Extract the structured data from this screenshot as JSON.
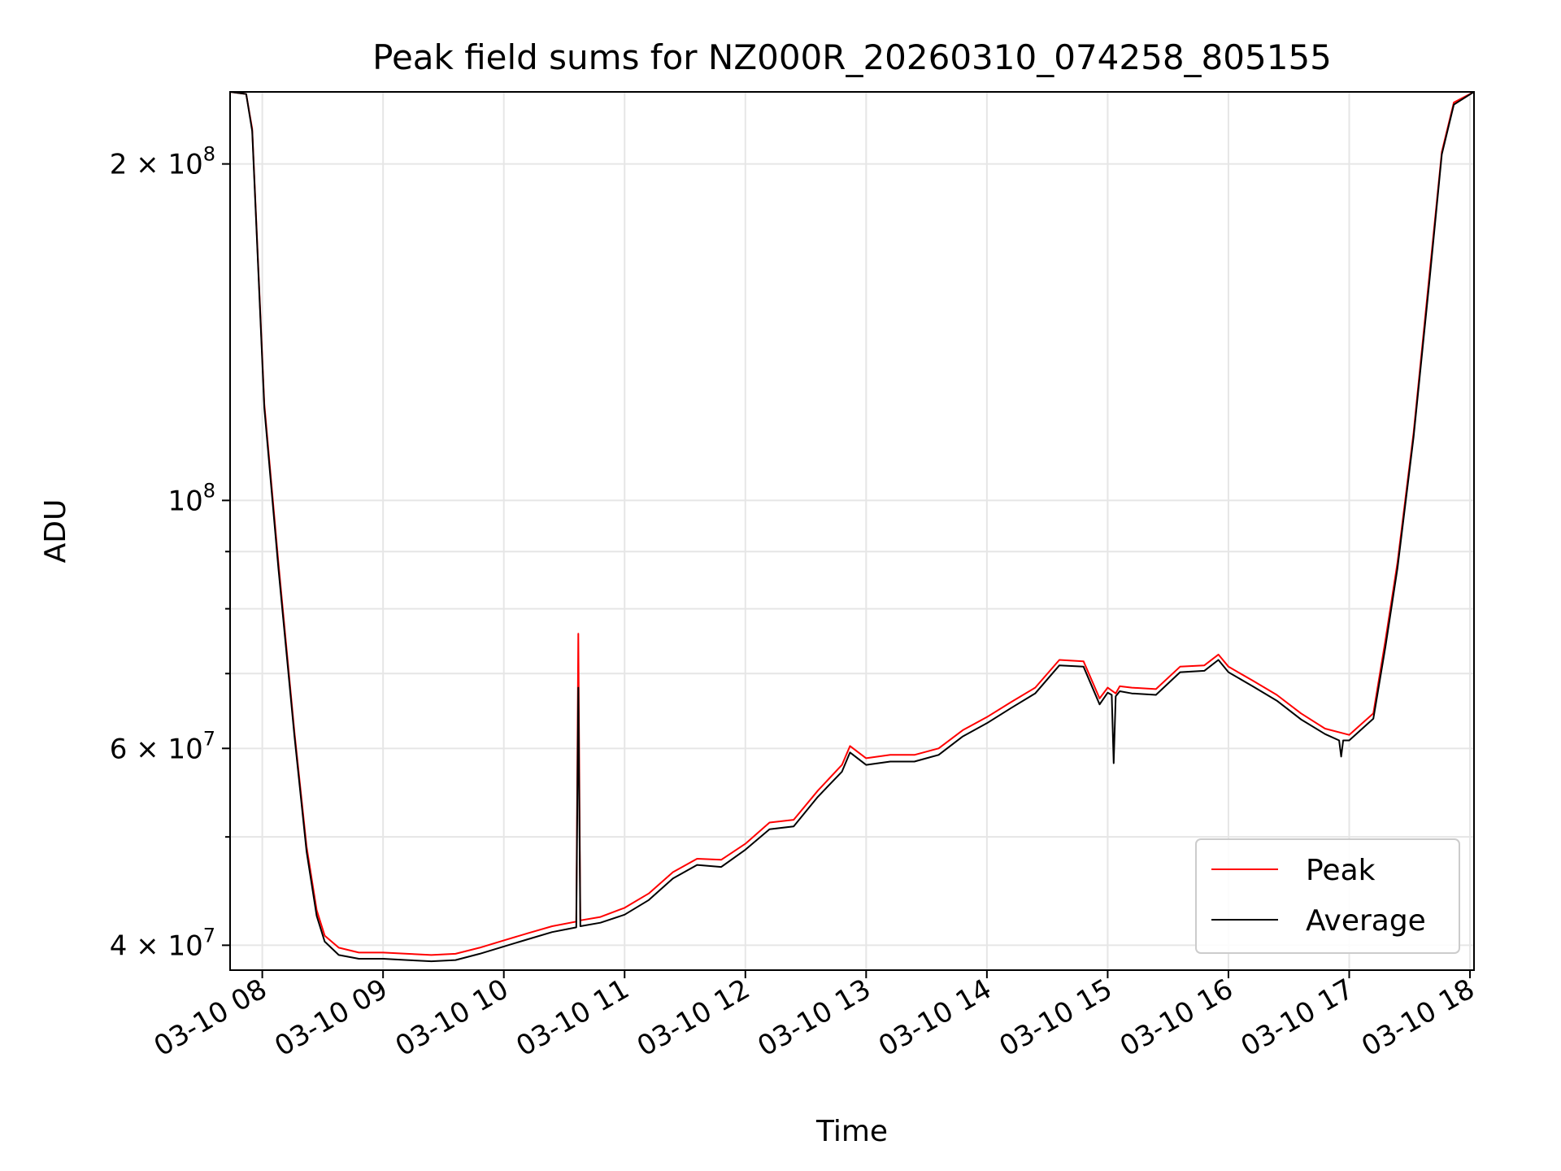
{
  "chart_data": {
    "type": "line",
    "title": "Peak field sums for NZ000R_20260310_074258_805155",
    "xlabel": "Time",
    "ylabel": "ADU",
    "x_type": "time",
    "y_scale": "log",
    "xlim": [
      "2026-03-10 07:44",
      "2026-03-10 18:02"
    ],
    "ylim": [
      38000000,
      232000000
    ],
    "grid": true,
    "legend_position": "lower-right",
    "x_ticks": [
      {
        "value": "2026-03-10 08:00",
        "label": "03-10 08"
      },
      {
        "value": "2026-03-10 09:00",
        "label": "03-10 09"
      },
      {
        "value": "2026-03-10 10:00",
        "label": "03-10 10"
      },
      {
        "value": "2026-03-10 11:00",
        "label": "03-10 11"
      },
      {
        "value": "2026-03-10 12:00",
        "label": "03-10 12"
      },
      {
        "value": "2026-03-10 13:00",
        "label": "03-10 13"
      },
      {
        "value": "2026-03-10 14:00",
        "label": "03-10 14"
      },
      {
        "value": "2026-03-10 15:00",
        "label": "03-10 15"
      },
      {
        "value": "2026-03-10 16:00",
        "label": "03-10 16"
      },
      {
        "value": "2026-03-10 17:00",
        "label": "03-10 17"
      },
      {
        "value": "2026-03-10 18:00",
        "label": "03-10 18"
      }
    ],
    "y_major_ticks": [
      {
        "value": 40000000,
        "label": "4 × 10",
        "exp": "7"
      },
      {
        "value": 60000000,
        "label": "6 × 10",
        "exp": "7"
      },
      {
        "value": 100000000,
        "label": "10",
        "exp": "8"
      },
      {
        "value": 200000000,
        "label": "2 × 10",
        "exp": "8"
      }
    ],
    "y_minor_ticks": [
      50000000,
      70000000,
      80000000,
      90000000
    ],
    "series": [
      {
        "name": "Peak",
        "color": "#ff0000",
        "points": [
          [
            "2026-03-10 07:44",
            232000000
          ],
          [
            "2026-03-10 07:52",
            231000000
          ],
          [
            "2026-03-10 07:55",
            215000000
          ],
          [
            "2026-03-10 08:01",
            122000000
          ],
          [
            "2026-03-10 08:08",
            88000000
          ],
          [
            "2026-03-10 08:16",
            62000000
          ],
          [
            "2026-03-10 08:22",
            49000000
          ],
          [
            "2026-03-10 08:27",
            43000000
          ],
          [
            "2026-03-10 08:31",
            40800000
          ],
          [
            "2026-03-10 08:38",
            39800000
          ],
          [
            "2026-03-10 08:48",
            39400000
          ],
          [
            "2026-03-10 09:00",
            39400000
          ],
          [
            "2026-03-10 09:12",
            39300000
          ],
          [
            "2026-03-10 09:24",
            39200000
          ],
          [
            "2026-03-10 09:36",
            39300000
          ],
          [
            "2026-03-10 09:48",
            39800000
          ],
          [
            "2026-03-10 10:00",
            40400000
          ],
          [
            "2026-03-10 10:12",
            41000000
          ],
          [
            "2026-03-10 10:24",
            41600000
          ],
          [
            "2026-03-10 10:36",
            42000000
          ],
          [
            "2026-03-10 10:37",
            76000000
          ],
          [
            "2026-03-10 10:38",
            42100000
          ],
          [
            "2026-03-10 10:48",
            42400000
          ],
          [
            "2026-03-10 11:00",
            43200000
          ],
          [
            "2026-03-10 11:12",
            44500000
          ],
          [
            "2026-03-10 11:24",
            46500000
          ],
          [
            "2026-03-10 11:36",
            47800000
          ],
          [
            "2026-03-10 11:48",
            47700000
          ],
          [
            "2026-03-10 12:00",
            49300000
          ],
          [
            "2026-03-10 12:12",
            51500000
          ],
          [
            "2026-03-10 12:24",
            51800000
          ],
          [
            "2026-03-10 12:36",
            55000000
          ],
          [
            "2026-03-10 12:48",
            58000000
          ],
          [
            "2026-03-10 12:52",
            60300000
          ],
          [
            "2026-03-10 13:00",
            58800000
          ],
          [
            "2026-03-10 13:12",
            59200000
          ],
          [
            "2026-03-10 13:24",
            59200000
          ],
          [
            "2026-03-10 13:36",
            60000000
          ],
          [
            "2026-03-10 13:48",
            62300000
          ],
          [
            "2026-03-10 14:00",
            64000000
          ],
          [
            "2026-03-10 14:12",
            66000000
          ],
          [
            "2026-03-10 14:24",
            68000000
          ],
          [
            "2026-03-10 14:36",
            72000000
          ],
          [
            "2026-03-10 14:48",
            71800000
          ],
          [
            "2026-03-10 14:56",
            66500000
          ],
          [
            "2026-03-10 15:00",
            68000000
          ],
          [
            "2026-03-10 15:04",
            67200000
          ],
          [
            "2026-03-10 15:06",
            68200000
          ],
          [
            "2026-03-10 15:12",
            68000000
          ],
          [
            "2026-03-10 15:24",
            67800000
          ],
          [
            "2026-03-10 15:36",
            71000000
          ],
          [
            "2026-03-10 15:48",
            71200000
          ],
          [
            "2026-03-10 15:55",
            72800000
          ],
          [
            "2026-03-10 16:00",
            71000000
          ],
          [
            "2026-03-10 16:12",
            69000000
          ],
          [
            "2026-03-10 16:24",
            67000000
          ],
          [
            "2026-03-10 16:36",
            64500000
          ],
          [
            "2026-03-10 16:48",
            62500000
          ],
          [
            "2026-03-10 17:00",
            61700000
          ],
          [
            "2026-03-10 17:12",
            64500000
          ],
          [
            "2026-03-10 17:18",
            75000000
          ],
          [
            "2026-03-10 17:24",
            88000000
          ],
          [
            "2026-03-10 17:32",
            115000000
          ],
          [
            "2026-03-10 17:40",
            160000000
          ],
          [
            "2026-03-10 17:46",
            205000000
          ],
          [
            "2026-03-10 17:52",
            227000000
          ],
          [
            "2026-03-10 18:02",
            232000000
          ]
        ]
      },
      {
        "name": "Average",
        "color": "#000000",
        "points": [
          [
            "2026-03-10 07:44",
            232000000
          ],
          [
            "2026-03-10 07:52",
            231000000
          ],
          [
            "2026-03-10 07:55",
            214000000
          ],
          [
            "2026-03-10 08:01",
            121000000
          ],
          [
            "2026-03-10 08:08",
            87000000
          ],
          [
            "2026-03-10 08:16",
            61500000
          ],
          [
            "2026-03-10 08:22",
            48500000
          ],
          [
            "2026-03-10 08:27",
            42500000
          ],
          [
            "2026-03-10 08:31",
            40300000
          ],
          [
            "2026-03-10 08:38",
            39200000
          ],
          [
            "2026-03-10 08:48",
            38900000
          ],
          [
            "2026-03-10 09:00",
            38900000
          ],
          [
            "2026-03-10 09:12",
            38800000
          ],
          [
            "2026-03-10 09:24",
            38700000
          ],
          [
            "2026-03-10 09:36",
            38800000
          ],
          [
            "2026-03-10 09:48",
            39300000
          ],
          [
            "2026-03-10 10:00",
            39900000
          ],
          [
            "2026-03-10 10:12",
            40500000
          ],
          [
            "2026-03-10 10:24",
            41100000
          ],
          [
            "2026-03-10 10:36",
            41500000
          ],
          [
            "2026-03-10 10:37",
            68000000
          ],
          [
            "2026-03-10 10:38",
            41600000
          ],
          [
            "2026-03-10 10:48",
            41900000
          ],
          [
            "2026-03-10 11:00",
            42600000
          ],
          [
            "2026-03-10 11:12",
            43900000
          ],
          [
            "2026-03-10 11:24",
            45900000
          ],
          [
            "2026-03-10 11:36",
            47200000
          ],
          [
            "2026-03-10 11:48",
            47000000
          ],
          [
            "2026-03-10 12:00",
            48700000
          ],
          [
            "2026-03-10 12:12",
            50800000
          ],
          [
            "2026-03-10 12:24",
            51100000
          ],
          [
            "2026-03-10 12:36",
            54300000
          ],
          [
            "2026-03-10 12:48",
            57200000
          ],
          [
            "2026-03-10 12:52",
            59500000
          ],
          [
            "2026-03-10 13:00",
            58000000
          ],
          [
            "2026-03-10 13:12",
            58400000
          ],
          [
            "2026-03-10 13:24",
            58400000
          ],
          [
            "2026-03-10 13:36",
            59200000
          ],
          [
            "2026-03-10 13:48",
            61500000
          ],
          [
            "2026-03-10 14:00",
            63200000
          ],
          [
            "2026-03-10 14:12",
            65200000
          ],
          [
            "2026-03-10 14:24",
            67200000
          ],
          [
            "2026-03-10 14:36",
            71200000
          ],
          [
            "2026-03-10 14:48",
            71000000
          ],
          [
            "2026-03-10 14:56",
            65700000
          ],
          [
            "2026-03-10 15:00",
            67300000
          ],
          [
            "2026-03-10 15:02",
            67000000
          ],
          [
            "2026-03-10 15:03",
            58200000
          ],
          [
            "2026-03-10 15:04",
            66800000
          ],
          [
            "2026-03-10 15:06",
            67500000
          ],
          [
            "2026-03-10 15:12",
            67200000
          ],
          [
            "2026-03-10 15:24",
            67000000
          ],
          [
            "2026-03-10 15:36",
            70200000
          ],
          [
            "2026-03-10 15:48",
            70400000
          ],
          [
            "2026-03-10 15:55",
            72000000
          ],
          [
            "2026-03-10 16:00",
            70200000
          ],
          [
            "2026-03-10 16:12",
            68200000
          ],
          [
            "2026-03-10 16:24",
            66200000
          ],
          [
            "2026-03-10 16:36",
            63700000
          ],
          [
            "2026-03-10 16:48",
            61800000
          ],
          [
            "2026-03-10 16:55",
            61000000
          ],
          [
            "2026-03-10 16:56",
            59000000
          ],
          [
            "2026-03-10 16:57",
            61000000
          ],
          [
            "2026-03-10 17:00",
            61000000
          ],
          [
            "2026-03-10 17:12",
            63800000
          ],
          [
            "2026-03-10 17:18",
            74000000
          ],
          [
            "2026-03-10 17:24",
            87000000
          ],
          [
            "2026-03-10 17:32",
            114000000
          ],
          [
            "2026-03-10 17:40",
            158000000
          ],
          [
            "2026-03-10 17:46",
            204000000
          ],
          [
            "2026-03-10 17:52",
            226000000
          ],
          [
            "2026-03-10 18:02",
            232000000
          ]
        ]
      }
    ]
  }
}
